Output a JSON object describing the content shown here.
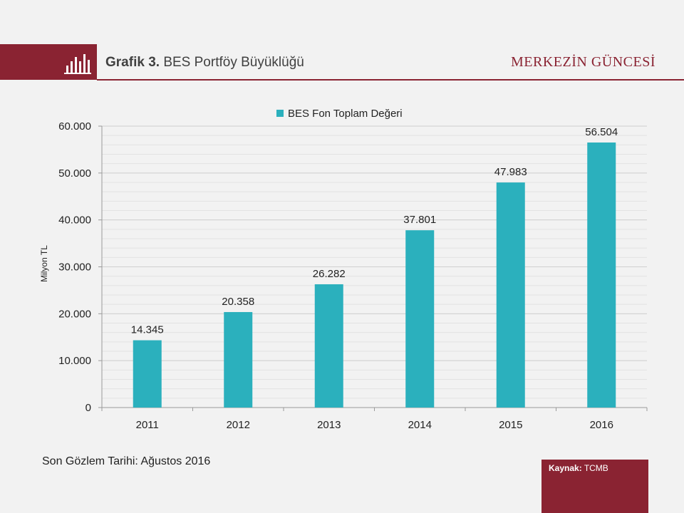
{
  "header": {
    "label": "Grafik 3.",
    "title": "BES Portföy Büyüklüğü",
    "brand": "MERKEZİN GÜNCESİ",
    "icon": "bar-chart-icon"
  },
  "chart_data": {
    "type": "bar",
    "categories": [
      "2011",
      "2012",
      "2013",
      "2014",
      "2015",
      "2016"
    ],
    "series": [
      {
        "name": "BES Fon Toplam Değeri",
        "values": [
          14345,
          20358,
          26282,
          37801,
          47983,
          56504
        ]
      }
    ],
    "data_labels": [
      "14.345",
      "20.358",
      "26.282",
      "37.801",
      "47.983",
      "56.504"
    ],
    "y_ticks": [
      0,
      10000,
      20000,
      30000,
      40000,
      50000,
      60000
    ],
    "y_tick_labels": [
      "0",
      "10.000",
      "20.000",
      "30.000",
      "40.000",
      "50.000",
      "60.000"
    ],
    "ylim": [
      0,
      60000
    ],
    "ylabel": "Milyon TL",
    "xlabel": "",
    "legend_position": "top",
    "grid": true,
    "bar_color": "#2bb0bd"
  },
  "footer": {
    "note": "Son Gözlem Tarihi: Ağustos 2016",
    "source_label": "Kaynak:",
    "source_value": "TCMB",
    "accent_color": "#8a2332"
  }
}
